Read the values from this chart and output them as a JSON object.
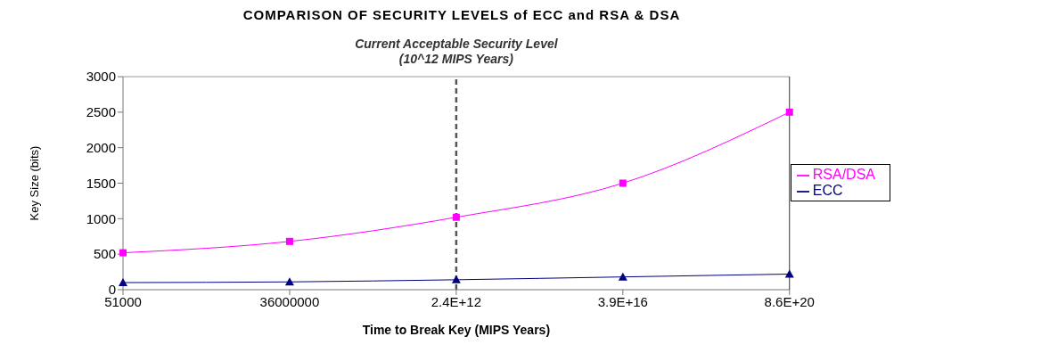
{
  "chart_data": {
    "type": "line",
    "title": "COMPARISON OF SECURITY LEVELS of ECC and RSA & DSA",
    "xlabel": "Time to Break Key (MIPS Years)",
    "ylabel": "Key Size (bits)",
    "categories": [
      "51000",
      "36000000",
      "2.4E+12",
      "3.9E+16",
      "8.6E+20"
    ],
    "series": [
      {
        "name": "RSA/DSA",
        "color": "#ff00ff",
        "marker": "square",
        "values": [
          520,
          680,
          1020,
          1500,
          2500
        ]
      },
      {
        "name": "ECC",
        "color": "#000080",
        "marker": "triangle",
        "values": [
          100,
          110,
          140,
          180,
          220
        ]
      }
    ],
    "ylim": [
      0,
      3000
    ],
    "yticks": [
      0,
      500,
      1000,
      1500,
      2000,
      2500,
      3000
    ],
    "legend": "right",
    "ref_lines": [
      {
        "axis": "x",
        "value": "2.4E+12",
        "label": "Current Acceptable Security Level (10^12 MIPS Years)",
        "color": "#555555",
        "line_style": "dashed"
      }
    ]
  }
}
